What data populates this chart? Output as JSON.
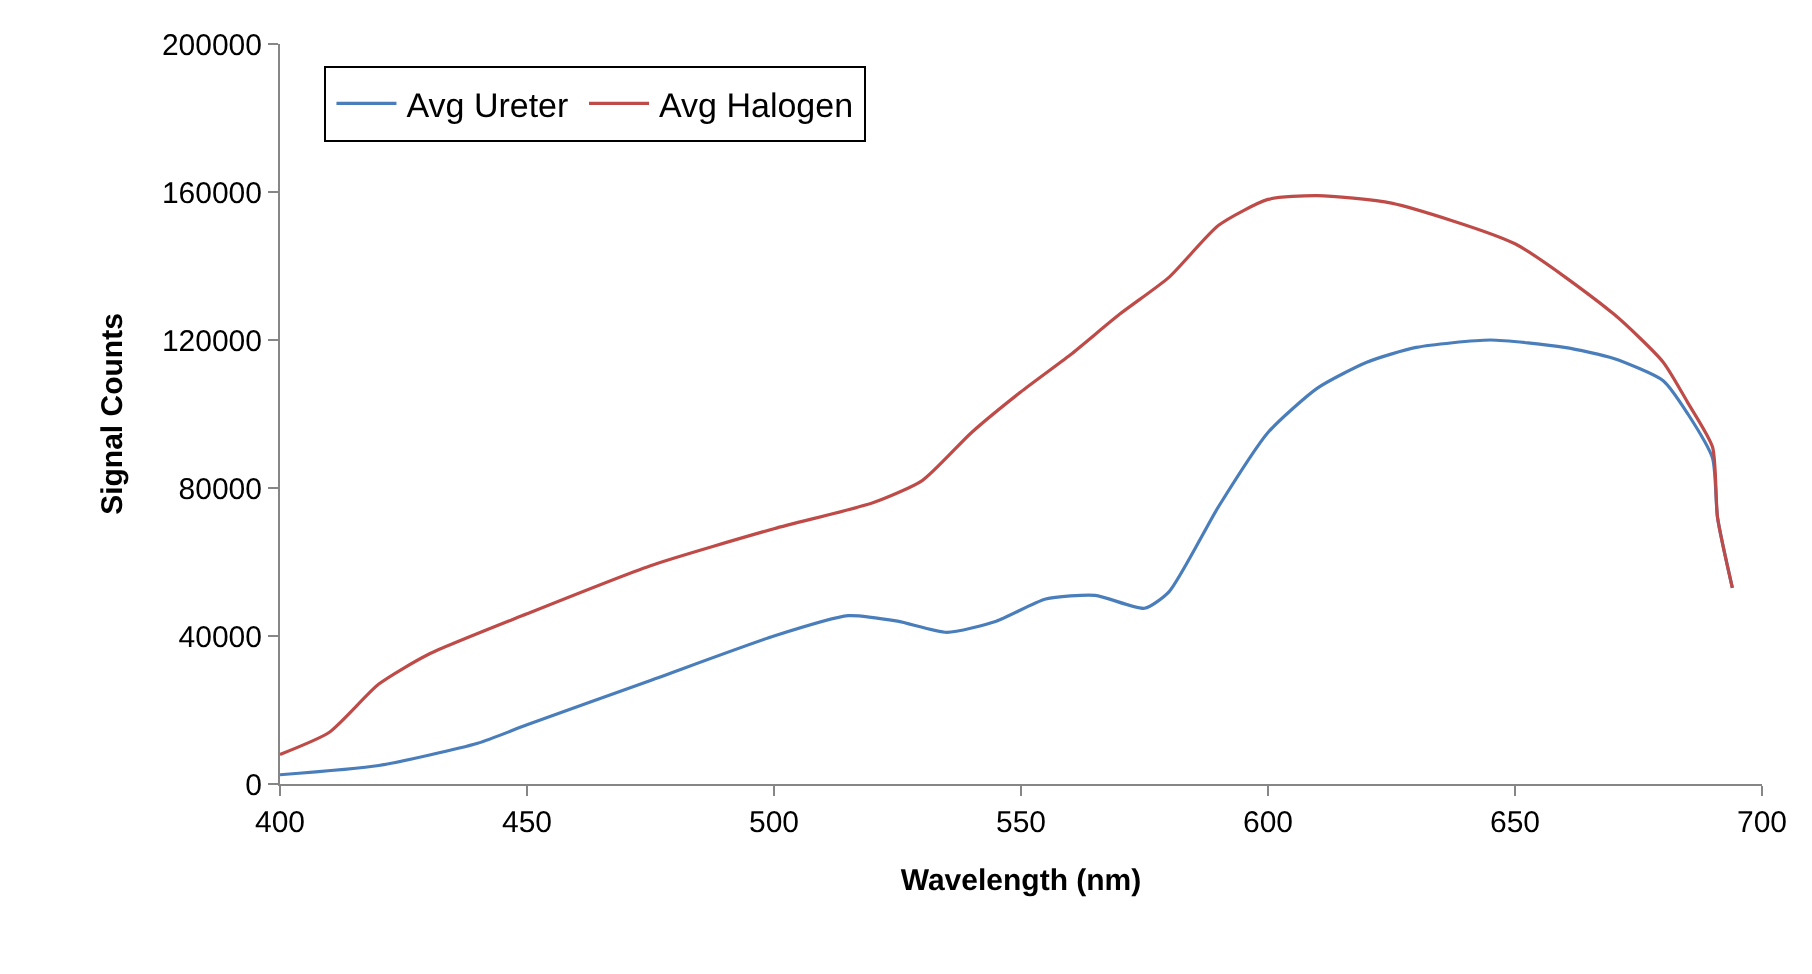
{
  "chart_data": {
    "type": "line",
    "xlabel": "Wavelength (nm)",
    "ylabel": "Signal Counts",
    "xlim": [
      400,
      700
    ],
    "xticks": [
      400,
      450,
      500,
      550,
      600,
      650,
      700
    ],
    "ylim": [
      0,
      200000
    ],
    "yticks": [
      0,
      40000,
      80000,
      120000,
      160000,
      200000
    ],
    "legend": "top left",
    "marker": "none",
    "line_style": "solid",
    "series": [
      {
        "name": "Avg Ureter",
        "color": "#4a7ebb",
        "x": [
          400,
          420,
          440,
          450,
          475,
          500,
          515,
          525,
          535,
          545,
          555,
          565,
          575,
          580,
          590,
          600,
          610,
          620,
          630,
          645,
          660,
          670,
          680,
          685,
          690,
          691,
          694
        ],
        "values": [
          2500,
          5000,
          11000,
          16000,
          28000,
          40000,
          45500,
          44000,
          41000,
          44000,
          50000,
          51000,
          47500,
          52000,
          75000,
          95000,
          107000,
          114000,
          118000,
          120000,
          118000,
          115000,
          109000,
          100000,
          88000,
          72000,
          53000
        ]
      },
      {
        "name": "Avg Halogen",
        "color": "#be4b48",
        "x": [
          400,
          410,
          420,
          430,
          450,
          475,
          500,
          520,
          530,
          540,
          550,
          560,
          570,
          580,
          590,
          600,
          610,
          625,
          650,
          670,
          680,
          685,
          690,
          691,
          694
        ],
        "values": [
          8000,
          14000,
          27000,
          35000,
          46000,
          59000,
          69000,
          76000,
          82000,
          95000,
          106000,
          116000,
          127000,
          137000,
          151000,
          158000,
          159000,
          157000,
          146000,
          127000,
          114000,
          103000,
          91000,
          72000,
          53000
        ]
      }
    ]
  }
}
